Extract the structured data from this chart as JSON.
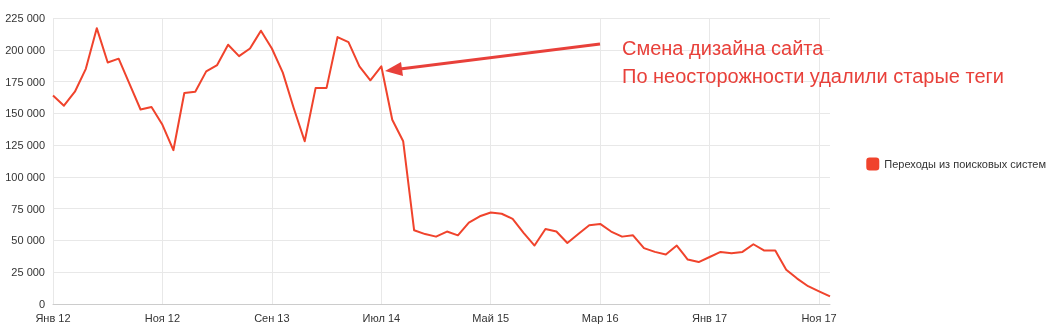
{
  "chart_data": {
    "type": "line",
    "categories": [
      "Янв 12",
      null,
      null,
      null,
      null,
      null,
      null,
      null,
      null,
      null,
      "Ноя 12",
      null,
      null,
      null,
      null,
      null,
      null,
      null,
      null,
      null,
      "Сен 13",
      null,
      null,
      null,
      null,
      null,
      null,
      null,
      null,
      null,
      "Июл 14",
      null,
      null,
      null,
      null,
      null,
      null,
      null,
      null,
      null,
      "Май 15",
      null,
      null,
      null,
      null,
      null,
      null,
      null,
      null,
      null,
      "Мар 16",
      null,
      null,
      null,
      null,
      null,
      null,
      null,
      null,
      null,
      "Янв 17",
      null,
      null,
      null,
      null,
      null,
      null,
      null,
      null,
      null,
      "Ноя 17",
      null
    ],
    "series": [
      {
        "name": "Переходы из поисковых систем",
        "color": "#f0432c",
        "values": [
          164000,
          156000,
          167000,
          185000,
          217000,
          190000,
          193000,
          173000,
          153000,
          155000,
          141000,
          121000,
          166000,
          167000,
          183000,
          188000,
          204000,
          195000,
          201000,
          215000,
          201000,
          182000,
          154000,
          128000,
          170000,
          170000,
          210000,
          206000,
          187000,
          176000,
          187000,
          145000,
          128000,
          58000,
          55000,
          53000,
          57000,
          54000,
          64000,
          69000,
          72000,
          71000,
          67000,
          56000,
          46000,
          59000,
          57000,
          48000,
          55000,
          62000,
          63000,
          57000,
          53000,
          54000,
          44000,
          41000,
          39000,
          46000,
          35000,
          33000,
          37000,
          41000,
          40000,
          41000,
          47000,
          42000,
          42000,
          27000,
          20000,
          14000,
          10000,
          6000
        ]
      }
    ],
    "ylim": [
      0,
      225000
    ],
    "yticks": [
      {
        "value": 0,
        "label": "0"
      },
      {
        "value": 25000,
        "label": "25 000"
      },
      {
        "value": 50000,
        "label": "50 000"
      },
      {
        "value": 75000,
        "label": "75 000"
      },
      {
        "value": 100000,
        "label": "100 000"
      },
      {
        "value": 125000,
        "label": "125 000"
      },
      {
        "value": 150000,
        "label": "150 000"
      },
      {
        "value": 175000,
        "label": "175 000"
      },
      {
        "value": 200000,
        "label": "200 000"
      },
      {
        "value": 225000,
        "label": "225 000"
      }
    ],
    "grid": true,
    "legend": "right",
    "marker": "none",
    "line_style": "solid",
    "annotations": [
      "Смена дизайна сайта\nПо неосторожности удалили старые теги"
    ]
  }
}
